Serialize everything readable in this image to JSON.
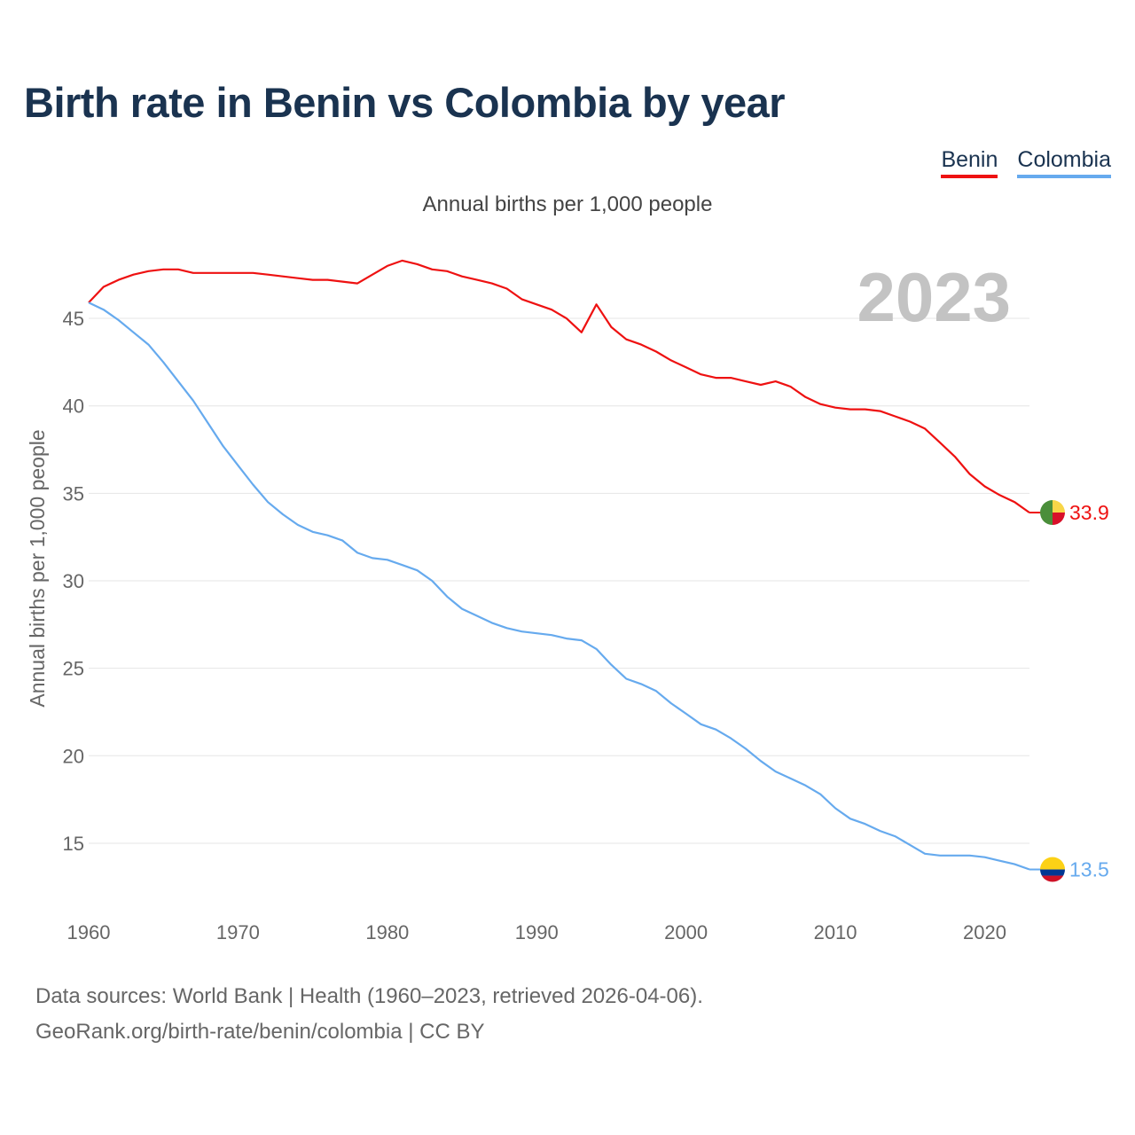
{
  "header": {
    "title": "Birth rate in Benin vs Colombia by year",
    "subtitle": "Annual births per 1,000 people",
    "year_watermark": "2023"
  },
  "legend": {
    "items": [
      {
        "label": "Benin",
        "color": "#ee1111"
      },
      {
        "label": "Colombia",
        "color": "#66aaee"
      }
    ]
  },
  "footer": {
    "line1": "Data sources: World Bank | Health (1960–2023, retrieved 2026-04-06).",
    "line2": "GeoRank.org/birth-rate/benin/colombia | CC BY"
  },
  "chart_data": {
    "type": "line",
    "title": "Birth rate in Benin vs Colombia by year",
    "xlabel": "",
    "ylabel": "Annual births per 1,000 people",
    "xlim": [
      1960,
      2023
    ],
    "ylim": [
      11.5,
      48.5
    ],
    "grid": true,
    "legend_position": "top-right",
    "x_ticks": [
      1960,
      1970,
      1980,
      1990,
      2000,
      2010,
      2020
    ],
    "y_ticks": [
      15,
      20,
      25,
      30,
      35,
      40,
      45
    ],
    "x": [
      1960,
      1961,
      1962,
      1963,
      1964,
      1965,
      1966,
      1967,
      1968,
      1969,
      1970,
      1971,
      1972,
      1973,
      1974,
      1975,
      1976,
      1977,
      1978,
      1979,
      1980,
      1981,
      1982,
      1983,
      1984,
      1985,
      1986,
      1987,
      1988,
      1989,
      1990,
      1991,
      1992,
      1993,
      1994,
      1995,
      1996,
      1997,
      1998,
      1999,
      2000,
      2001,
      2002,
      2003,
      2004,
      2005,
      2006,
      2007,
      2008,
      2009,
      2010,
      2011,
      2012,
      2013,
      2014,
      2015,
      2016,
      2017,
      2018,
      2019,
      2020,
      2021,
      2022,
      2023
    ],
    "series": [
      {
        "name": "Benin",
        "color": "#ee1111",
        "end_label": "33.9",
        "flag": [
          "#4a8e3a",
          "#f8d648",
          "#d8102a"
        ],
        "values": [
          45.9,
          46.8,
          47.2,
          47.5,
          47.7,
          47.8,
          47.8,
          47.6,
          47.6,
          47.6,
          47.6,
          47.6,
          47.5,
          47.4,
          47.3,
          47.2,
          47.2,
          47.1,
          47.0,
          47.5,
          48.0,
          48.3,
          48.1,
          47.8,
          47.7,
          47.4,
          47.2,
          47.0,
          46.7,
          46.1,
          45.8,
          45.5,
          45.0,
          44.2,
          45.8,
          44.5,
          43.8,
          43.5,
          43.1,
          42.6,
          42.2,
          41.8,
          41.6,
          41.6,
          41.4,
          41.2,
          41.4,
          41.1,
          40.5,
          40.1,
          39.9,
          39.8,
          39.8,
          39.7,
          39.4,
          39.1,
          38.7,
          37.9,
          37.1,
          36.1,
          35.4,
          34.9,
          34.5,
          33.9
        ]
      },
      {
        "name": "Colombia",
        "color": "#66aaee",
        "end_label": "13.5",
        "flag": [
          "#fcd116",
          "#003893",
          "#ce1126"
        ],
        "values": [
          45.9,
          45.5,
          44.9,
          44.2,
          43.5,
          42.5,
          41.4,
          40.3,
          39.0,
          37.7,
          36.6,
          35.5,
          34.5,
          33.8,
          33.2,
          32.8,
          32.6,
          32.3,
          31.6,
          31.3,
          31.2,
          30.9,
          30.6,
          30.0,
          29.1,
          28.4,
          28.0,
          27.6,
          27.3,
          27.1,
          27.0,
          26.9,
          26.7,
          26.6,
          26.1,
          25.2,
          24.4,
          24.1,
          23.7,
          23.0,
          22.4,
          21.8,
          21.5,
          21.0,
          20.4,
          19.7,
          19.1,
          18.7,
          18.3,
          17.8,
          17.0,
          16.4,
          16.1,
          15.7,
          15.4,
          14.9,
          14.4,
          14.3,
          14.3,
          14.3,
          14.2,
          14.0,
          13.8,
          13.5
        ]
      }
    ]
  }
}
